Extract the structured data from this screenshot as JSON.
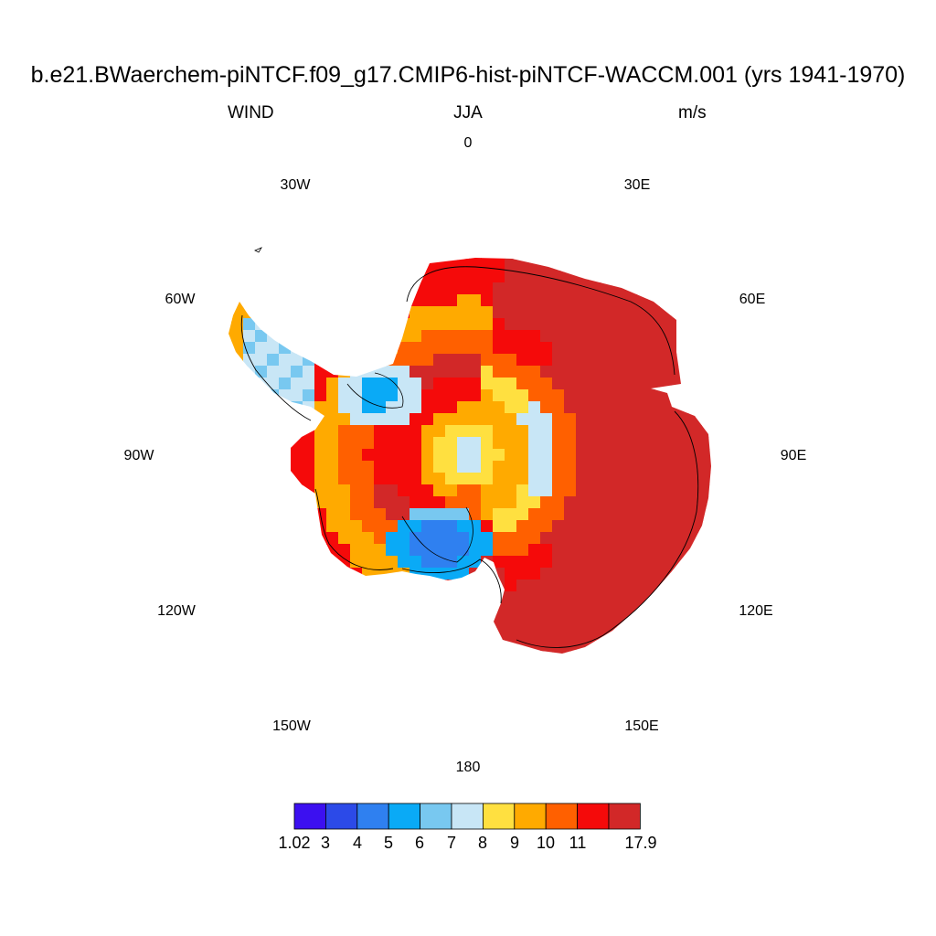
{
  "title": "b.e21.BWaerchem-piNTCF.f09_g17.CMIP6-hist-piNTCF-WACCM.001 (yrs 1941-1970)",
  "left_string": "WIND",
  "center_string": "JJA",
  "right_string": "m/s",
  "longitude_labels": {
    "lon_0": "0",
    "lon_30e": "30E",
    "lon_60e": "60E",
    "lon_90e": "90E",
    "lon_120e": "120E",
    "lon_150e": "150E",
    "lon_180": "180",
    "lon_150w": "150W",
    "lon_120w": "120W",
    "lon_90w": "90W",
    "lon_60w": "60W",
    "lon_30w": "30W"
  },
  "colorbar": {
    "colors": [
      "#3c10f0",
      "#2c4ae8",
      "#2f80f0",
      "#0aaaf6",
      "#78c8f0",
      "#c8e6f6",
      "#ffe040",
      "#ffaa00",
      "#ff6000",
      "#f50a0a",
      "#d22828"
    ],
    "labels": [
      "1.02",
      "3",
      "4",
      "5",
      "6",
      "7",
      "8",
      "9",
      "10",
      "11",
      "17.9"
    ]
  },
  "chart_data": {
    "type": "heatmap",
    "variable": "WIND",
    "season": "JJA",
    "units": "m/s",
    "projection": "south polar stereographic",
    "data_min": 1.02,
    "data_max": 17.9,
    "contour_levels": [
      3,
      4,
      5,
      6,
      7,
      8,
      9,
      10,
      11
    ],
    "regions": [
      {
        "region": "East Antarctic coastal belt (0E-150E)",
        "class_upper": 17.9
      },
      {
        "region": "Interior plateau ring",
        "class_upper": 11
      },
      {
        "region": "Near South Pole",
        "class_upper": 9
      },
      {
        "region": "Ross Ice Shelf area",
        "class_upper": 5
      },
      {
        "region": "Ronne-Filchner area",
        "class_upper": 6
      },
      {
        "region": "Antarctic Peninsula",
        "class_upper": 7
      }
    ]
  }
}
